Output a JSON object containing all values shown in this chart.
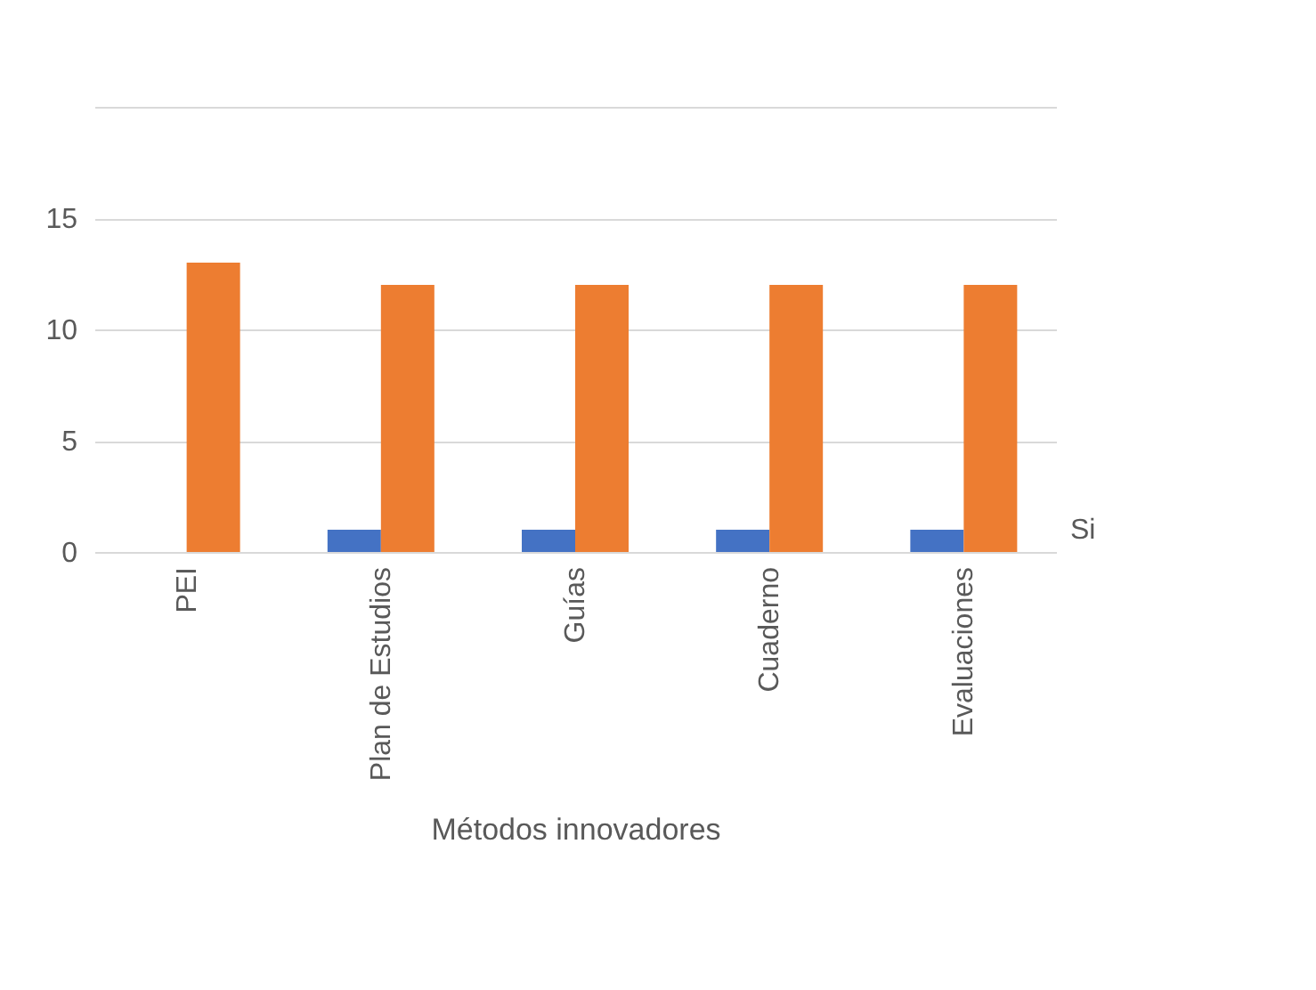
{
  "chart_data": {
    "type": "bar",
    "xlabel": "Métodos innovadores",
    "categories": [
      "PEI",
      "Plan de Estudios",
      "Guías",
      "Cuaderno",
      "Evaluaciones"
    ],
    "series": [
      {
        "name": "Si",
        "color": "#4472c4",
        "values": [
          0,
          1,
          1,
          1,
          1
        ]
      },
      {
        "color": "#ed7d31",
        "values": [
          13,
          12,
          12,
          12,
          12
        ]
      }
    ],
    "ylim": [
      0,
      20
    ],
    "yticks": [
      0,
      5,
      10,
      15,
      {
        "value": 20,
        "label": null
      }
    ],
    "grid": "y",
    "legend": false
  }
}
